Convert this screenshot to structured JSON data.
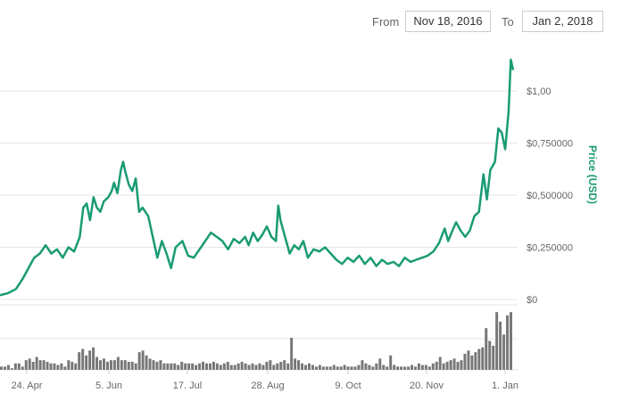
{
  "range": {
    "from_label": "From",
    "from_value": "Nov 18, 2016",
    "to_label": "To",
    "to_value": "Jan 2, 2018"
  },
  "colors": {
    "line": "#1a9b74",
    "volume": "#777777",
    "grid": "#e6e6e6"
  },
  "chart_data": {
    "type": "line",
    "title": "",
    "xlabel": "",
    "ylabel": "Price (USD)",
    "x_ticks": [
      "24. Apr",
      "5. Jun",
      "17. Jul",
      "28. Aug",
      "9. Oct",
      "20. Nov",
      "1. Jan"
    ],
    "y_ticks": [
      "$0",
      "$0,250000",
      "$0,500000",
      "$0,750000",
      "$1,00"
    ],
    "ylim": [
      0,
      1.25
    ],
    "grid": true,
    "series": [
      {
        "values": [
          [
            0,
            0.02
          ],
          [
            7,
            0.03
          ],
          [
            14,
            0.05
          ],
          [
            20,
            0.1
          ],
          [
            25,
            0.15
          ],
          [
            30,
            0.2
          ],
          [
            35,
            0.22
          ],
          [
            40,
            0.26
          ],
          [
            45,
            0.22
          ],
          [
            50,
            0.24
          ],
          [
            55,
            0.2
          ],
          [
            60,
            0.25
          ],
          [
            65,
            0.23
          ],
          [
            70,
            0.3
          ],
          [
            73,
            0.44
          ],
          [
            76,
            0.46
          ],
          [
            79,
            0.38
          ],
          [
            82,
            0.49
          ],
          [
            85,
            0.44
          ],
          [
            88,
            0.42
          ],
          [
            91,
            0.47
          ],
          [
            95,
            0.49
          ],
          [
            98,
            0.52
          ],
          [
            100,
            0.56
          ],
          [
            103,
            0.51
          ],
          [
            106,
            0.62
          ],
          [
            108,
            0.66
          ],
          [
            110,
            0.61
          ],
          [
            113,
            0.55
          ],
          [
            116,
            0.52
          ],
          [
            119,
            0.58
          ],
          [
            122,
            0.42
          ],
          [
            125,
            0.44
          ],
          [
            130,
            0.4
          ],
          [
            134,
            0.3
          ],
          [
            138,
            0.2
          ],
          [
            142,
            0.28
          ],
          [
            146,
            0.22
          ],
          [
            150,
            0.15
          ],
          [
            154,
            0.25
          ],
          [
            160,
            0.28
          ],
          [
            165,
            0.21
          ],
          [
            170,
            0.2
          ],
          [
            175,
            0.24
          ],
          [
            180,
            0.28
          ],
          [
            185,
            0.32
          ],
          [
            190,
            0.3
          ],
          [
            195,
            0.28
          ],
          [
            200,
            0.24
          ],
          [
            205,
            0.29
          ],
          [
            210,
            0.27
          ],
          [
            215,
            0.3
          ],
          [
            218,
            0.26
          ],
          [
            222,
            0.32
          ],
          [
            226,
            0.28
          ],
          [
            230,
            0.31
          ],
          [
            234,
            0.35
          ],
          [
            238,
            0.3
          ],
          [
            242,
            0.28
          ],
          [
            244,
            0.45
          ],
          [
            246,
            0.38
          ],
          [
            250,
            0.3
          ],
          [
            254,
            0.22
          ],
          [
            258,
            0.26
          ],
          [
            262,
            0.24
          ],
          [
            266,
            0.28
          ],
          [
            270,
            0.2
          ],
          [
            275,
            0.24
          ],
          [
            280,
            0.23
          ],
          [
            285,
            0.25
          ],
          [
            290,
            0.22
          ],
          [
            295,
            0.19
          ],
          [
            300,
            0.17
          ],
          [
            305,
            0.2
          ],
          [
            310,
            0.18
          ],
          [
            315,
            0.21
          ],
          [
            320,
            0.17
          ],
          [
            325,
            0.2
          ],
          [
            330,
            0.16
          ],
          [
            335,
            0.19
          ],
          [
            340,
            0.17
          ],
          [
            345,
            0.18
          ],
          [
            350,
            0.16
          ],
          [
            355,
            0.2
          ],
          [
            360,
            0.18
          ],
          [
            365,
            0.19
          ],
          [
            370,
            0.2
          ],
          [
            375,
            0.21
          ],
          [
            380,
            0.23
          ],
          [
            385,
            0.27
          ],
          [
            390,
            0.34
          ],
          [
            393,
            0.28
          ],
          [
            396,
            0.32
          ],
          [
            400,
            0.37
          ],
          [
            404,
            0.33
          ],
          [
            408,
            0.3
          ],
          [
            412,
            0.33
          ],
          [
            416,
            0.4
          ],
          [
            420,
            0.42
          ],
          [
            424,
            0.6
          ],
          [
            427,
            0.48
          ],
          [
            430,
            0.62
          ],
          [
            434,
            0.66
          ],
          [
            437,
            0.82
          ],
          [
            440,
            0.8
          ],
          [
            443,
            0.72
          ],
          [
            446,
            0.9
          ],
          [
            448,
            1.15
          ],
          [
            450,
            1.1
          ]
        ]
      }
    ],
    "volume": [
      0.1,
      0.1,
      0.15,
      0.05,
      0.2,
      0.2,
      0.1,
      0.3,
      0.35,
      0.25,
      0.4,
      0.3,
      0.3,
      0.25,
      0.2,
      0.2,
      0.15,
      0.2,
      0.1,
      0.3,
      0.25,
      0.2,
      0.55,
      0.65,
      0.45,
      0.6,
      0.7,
      0.4,
      0.3,
      0.35,
      0.25,
      0.3,
      0.3,
      0.4,
      0.3,
      0.3,
      0.25,
      0.25,
      0.2,
      0.55,
      0.6,
      0.45,
      0.35,
      0.3,
      0.25,
      0.3,
      0.2,
      0.2,
      0.2,
      0.2,
      0.15,
      0.25,
      0.2,
      0.2,
      0.2,
      0.15,
      0.2,
      0.25,
      0.2,
      0.2,
      0.25,
      0.2,
      0.15,
      0.2,
      0.25,
      0.15,
      0.15,
      0.2,
      0.25,
      0.2,
      0.15,
      0.2,
      0.15,
      0.2,
      0.15,
      0.25,
      0.3,
      0.15,
      0.2,
      0.25,
      0.3,
      0.2,
      1.0,
      0.35,
      0.3,
      0.2,
      0.15,
      0.2,
      0.15,
      0.1,
      0.15,
      0.1,
      0.1,
      0.1,
      0.15,
      0.1,
      0.1,
      0.15,
      0.1,
      0.1,
      0.1,
      0.15,
      0.3,
      0.2,
      0.15,
      0.1,
      0.2,
      0.35,
      0.15,
      0.1,
      0.45,
      0.15,
      0.1,
      0.1,
      0.1,
      0.1,
      0.15,
      0.1,
      0.2,
      0.15,
      0.15,
      0.1,
      0.2,
      0.25,
      0.4,
      0.2,
      0.25,
      0.3,
      0.35,
      0.25,
      0.3,
      0.5,
      0.6,
      0.45,
      0.55,
      0.65,
      0.7,
      1.3,
      0.9,
      0.75,
      1.8,
      1.5,
      1.1,
      1.7,
      1.8
    ]
  }
}
